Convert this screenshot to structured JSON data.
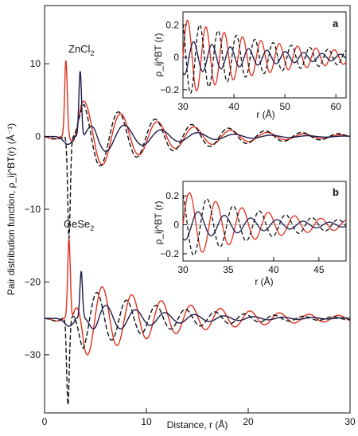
{
  "chart_data": [
    {
      "type": "line",
      "title": "",
      "xlabel": "Distance, r (Å)",
      "ylabel": "Pair distribution function, ρ_ij^BT(r) (Å⁻¹)",
      "xlim": [
        0,
        30
      ],
      "ylim": [
        -38,
        18
      ],
      "xticks": [
        0,
        10,
        20,
        30
      ],
      "yticks": [
        10,
        0,
        -10,
        -20,
        -30
      ],
      "tick_labels": {
        "x": [
          "0",
          "10",
          "20",
          "30"
        ],
        "y": [
          "10",
          "0",
          "−10",
          "−20",
          "−30"
        ]
      },
      "grid": false,
      "annotations": [
        "ZnCl",
        "GeSe"
      ],
      "annotation_subscripts": [
        "2",
        "2"
      ],
      "series": [
        {
          "color": "#e0301e",
          "style": "solid",
          "system": "ZnCl2",
          "offset": 0,
          "peak": [
            2.1,
            10.5
          ],
          "decay": 0.12,
          "period": 3.6,
          "amp": 6.0
        },
        {
          "color": "#111111",
          "style": "dashed",
          "system": "ZnCl2",
          "offset": 0,
          "peak": [
            2.4,
            -14.0
          ],
          "decay": 0.1,
          "period": 3.6,
          "amp": 5.5
        },
        {
          "color": "#1c1c4a",
          "style": "solid",
          "system": "ZnCl2",
          "offset": 0,
          "peak": [
            3.5,
            9.0
          ],
          "decay": 0.15,
          "period": 3.6,
          "amp": 3.0
        },
        {
          "color": "#e0301e",
          "style": "solid",
          "system": "GeSe2",
          "offset": -25,
          "peak": [
            2.4,
            11.0
          ],
          "decay": 0.1,
          "period": 2.9,
          "amp": 6.0
        },
        {
          "color": "#111111",
          "style": "dashed",
          "system": "GeSe2",
          "offset": -25,
          "peak": [
            2.3,
            -12.0
          ],
          "decay": 0.12,
          "period": 2.9,
          "amp": 5.0
        },
        {
          "color": "#1c1c4a",
          "style": "solid",
          "system": "GeSe2",
          "offset": -25,
          "peak": [
            3.6,
            6.5
          ],
          "decay": 0.14,
          "period": 2.9,
          "amp": 2.5
        }
      ]
    },
    {
      "type": "line",
      "panel": "a",
      "system": "ZnCl2",
      "xlabel": "r (Å)",
      "ylabel": "ρ_ij^BT (r)",
      "xlim": [
        30,
        62
      ],
      "ylim": [
        -0.25,
        0.28
      ],
      "xticks": [
        30,
        40,
        50,
        60
      ],
      "yticks": [
        0.2,
        0,
        -0.2
      ],
      "tick_labels": {
        "x": [
          "30",
          "40",
          "50",
          "60"
        ],
        "y": [
          "0.2",
          "0",
          "−0.2"
        ]
      },
      "period": 3.6,
      "decay": 0.055,
      "amp": 0.24,
      "series": [
        {
          "color": "#e0301e",
          "style": "solid"
        },
        {
          "color": "#111111",
          "style": "dashed"
        },
        {
          "color": "#1c1c4a",
          "style": "solid"
        }
      ]
    },
    {
      "type": "line",
      "panel": "b",
      "system": "GeSe2",
      "xlabel": "r (Å)",
      "ylabel": "ρ_ij^BT (r)",
      "xlim": [
        30,
        48
      ],
      "ylim": [
        -0.25,
        0.3
      ],
      "xticks": [
        30,
        35,
        40,
        45
      ],
      "yticks": [
        0.2,
        0,
        -0.2
      ],
      "tick_labels": {
        "x": [
          "30",
          "35",
          "40",
          "45"
        ],
        "y": [
          "0.2",
          "0",
          "−0.2"
        ]
      },
      "period": 2.9,
      "decay": 0.11,
      "amp": 0.24,
      "series": [
        {
          "color": "#e0301e",
          "style": "solid"
        },
        {
          "color": "#111111",
          "style": "dashed"
        },
        {
          "color": "#1c1c4a",
          "style": "solid"
        }
      ]
    }
  ]
}
